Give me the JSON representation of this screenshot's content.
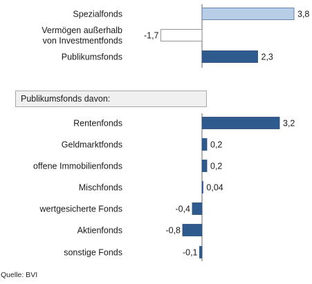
{
  "chart_data": {
    "type": "bar",
    "orientation": "horizontal",
    "categories": [
      "Spezialfonds",
      "Vermögen außerhalb von Investmentfonds",
      "Publikumsfonds",
      "Rentenfonds",
      "Geldmarktfonds",
      "offene Immobilienfonds",
      "Mischfonds",
      "wertgesicherte Fonds",
      "Aktienfonds",
      "sonstige Fonds"
    ],
    "category_lines": [
      [
        "Spezialfonds"
      ],
      [
        "Vermögen außerhalb",
        "von Investmentfonds"
      ],
      [
        "Publikumsfonds"
      ],
      [
        "Rentenfonds"
      ],
      [
        "Geldmarktfonds"
      ],
      [
        "offene Immobilienfonds"
      ],
      [
        "Mischfonds"
      ],
      [
        "wertgesicherte Fonds"
      ],
      [
        "Aktienfonds"
      ],
      [
        "sonstige Fonds"
      ]
    ],
    "values": [
      3.8,
      -1.7,
      2.3,
      3.2,
      0.2,
      0.2,
      0.04,
      -0.4,
      -0.8,
      -0.1
    ],
    "value_labels": [
      "3,8",
      "-1,7",
      "2,3",
      "3,2",
      "0,2",
      "0,2",
      "0,04",
      "-0,4",
      "-0,8",
      "-0,1"
    ],
    "group_heading": "Publikumsfonds davon:",
    "bar_colors": [
      "#b8cde6",
      "#ffffff",
      "#2e5a8e",
      "#2e5a8e",
      "#2e5a8e",
      "#2e5a8e",
      "#2e5a8e",
      "#2e5a8e",
      "#2e5a8e",
      "#2e5a8e"
    ],
    "title": "",
    "xlabel": "",
    "ylabel": "",
    "grid": false,
    "legend": "none"
  },
  "source": "Quelle: BVI"
}
